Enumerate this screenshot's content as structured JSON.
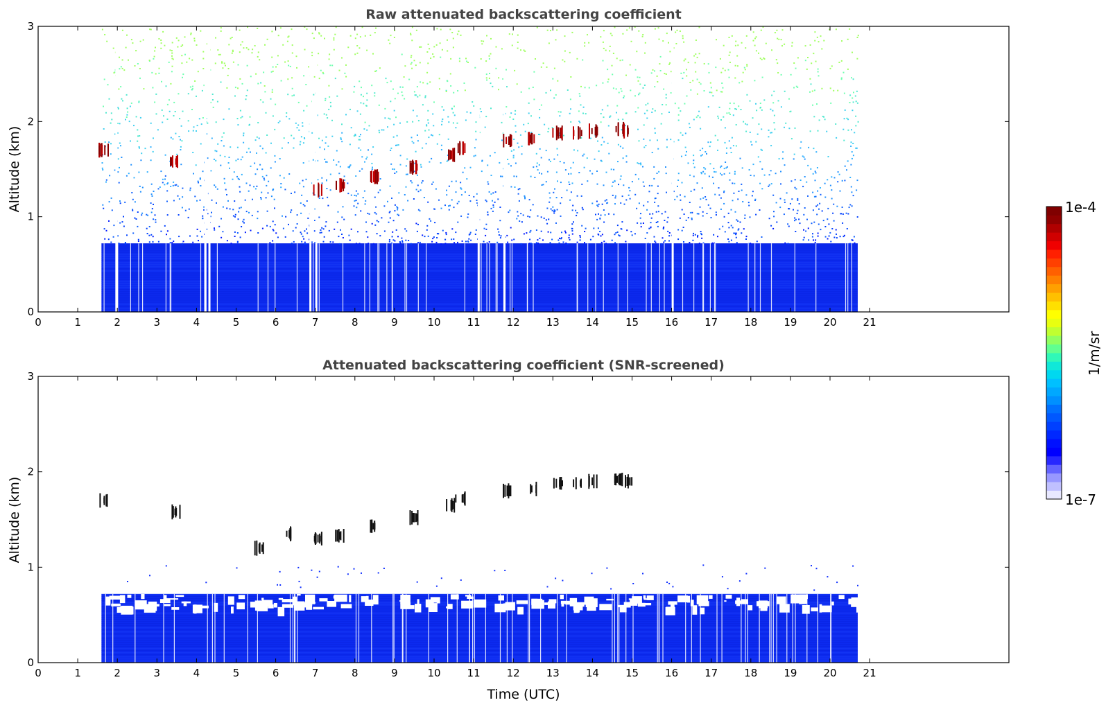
{
  "chart_data": [
    {
      "type": "heatmap",
      "title": "Raw attenuated backscattering coefficient",
      "xlabel": "",
      "ylabel": "Altitude (km)",
      "xlim": [
        0,
        24
      ],
      "ylim": [
        0,
        3
      ],
      "xticks": [
        "0",
        "1",
        "2",
        "3",
        "4",
        "5",
        "6",
        "7",
        "8",
        "9",
        "10",
        "11",
        "12",
        "13",
        "14",
        "15",
        "16",
        "17",
        "18",
        "19",
        "20",
        "21"
      ],
      "yticks": [
        "0",
        "1",
        "2",
        "3"
      ],
      "data_extent_hours": [
        1.6,
        20.7
      ],
      "layers": {
        "dense_blue_top_km": 0.72,
        "noise_top_km": 3.0
      },
      "data_gaps_hours": [
        1.95,
        4.2,
        4.3,
        6.85,
        7.0,
        11.1,
        11.75,
        16.0
      ],
      "cloud_features": [
        {
          "time": 1.63,
          "altitude_km": 1.7
        },
        {
          "time": 3.45,
          "altitude_km": 1.58
        },
        {
          "time": 7.05,
          "altitude_km": 1.28
        },
        {
          "time": 7.6,
          "altitude_km": 1.33
        },
        {
          "time": 8.5,
          "altitude_km": 1.42
        },
        {
          "time": 9.5,
          "altitude_km": 1.52
        },
        {
          "time": 10.4,
          "altitude_km": 1.65
        },
        {
          "time": 10.65,
          "altitude_km": 1.72
        },
        {
          "time": 11.85,
          "altitude_km": 1.8
        },
        {
          "time": 12.45,
          "altitude_km": 1.82
        },
        {
          "time": 13.1,
          "altitude_km": 1.88
        },
        {
          "time": 13.6,
          "altitude_km": 1.88
        },
        {
          "time": 14.0,
          "altitude_km": 1.9
        },
        {
          "time": 14.65,
          "altitude_km": 1.92
        },
        {
          "time": 14.9,
          "altitude_km": 1.9
        }
      ]
    },
    {
      "type": "heatmap",
      "title": "Attenuated backscattering coefficient (SNR-screened)",
      "xlabel": "Time (UTC)",
      "ylabel": "Altitude (km)",
      "xlim": [
        0,
        24
      ],
      "ylim": [
        0,
        3
      ],
      "xticks": [
        "0",
        "1",
        "2",
        "3",
        "4",
        "5",
        "6",
        "7",
        "8",
        "9",
        "10",
        "11",
        "12",
        "13",
        "14",
        "15",
        "16",
        "17",
        "18",
        "19",
        "20",
        "21"
      ],
      "yticks": [
        "0",
        "1",
        "2",
        "3"
      ],
      "data_extent_hours": [
        1.6,
        20.7
      ],
      "layers": {
        "dense_blue_top_km": 0.72
      },
      "cloud_features": [
        {
          "time": 1.63,
          "altitude_km": 1.7
        },
        {
          "time": 3.45,
          "altitude_km": 1.58
        },
        {
          "time": 5.55,
          "altitude_km": 1.2
        },
        {
          "time": 6.35,
          "altitude_km": 1.35
        },
        {
          "time": 7.05,
          "altitude_km": 1.3
        },
        {
          "time": 7.6,
          "altitude_km": 1.33
        },
        {
          "time": 8.5,
          "altitude_km": 1.43
        },
        {
          "time": 9.5,
          "altitude_km": 1.52
        },
        {
          "time": 10.4,
          "altitude_km": 1.65
        },
        {
          "time": 10.65,
          "altitude_km": 1.72
        },
        {
          "time": 11.85,
          "altitude_km": 1.8
        },
        {
          "time": 12.45,
          "altitude_km": 1.82
        },
        {
          "time": 13.1,
          "altitude_km": 1.88
        },
        {
          "time": 13.6,
          "altitude_km": 1.88
        },
        {
          "time": 14.0,
          "altitude_km": 1.9
        },
        {
          "time": 14.65,
          "altitude_km": 1.92
        },
        {
          "time": 14.9,
          "altitude_km": 1.9
        }
      ]
    }
  ],
  "colorbar": {
    "label": "1/m/sr",
    "max_label": "1e-4",
    "min_label": "1e-7",
    "colormap": "jet",
    "low_color": "#e8e8ff",
    "high_color": "#800000"
  }
}
